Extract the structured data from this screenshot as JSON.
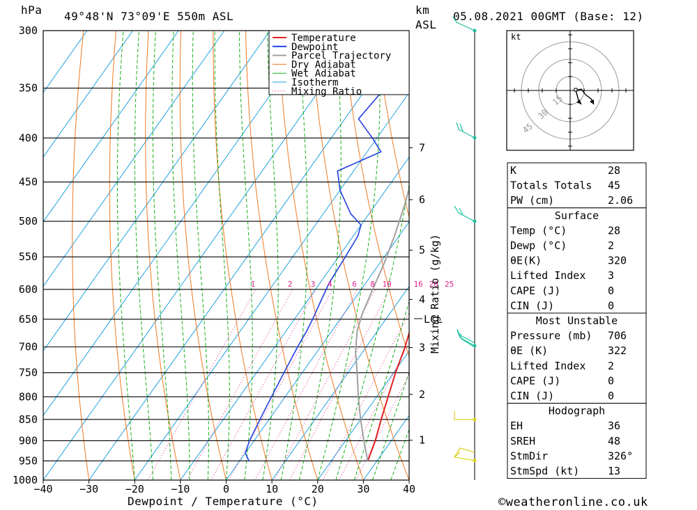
{
  "header": {
    "unit_p": "hPa",
    "location": "49°48'N 73°09'E 550m ASL",
    "unit_km": "km",
    "unit_asl": "ASL",
    "datetime": "05.08.2021 00GMT (Base: 12)"
  },
  "footer": {
    "credit": "©weatheronline.co.uk"
  },
  "colors": {
    "temperature": "#e02020",
    "dewpoint": "#2040e0",
    "parcel": "#a0a0a0",
    "dry_adiabat": "#f07820",
    "wet_adiabat": "#18b018",
    "isotherm": "#20a0e0",
    "mixing_ratio": "#e0208a",
    "wind": "#20c0a0"
  },
  "chart_data": {
    "type": "line",
    "title": "",
    "xlabel": "Dewpoint / Temperature (°C)",
    "ylabel": "hPa",
    "y2label": "Mixing Ratio (g/kg)",
    "xlim": [
      -40,
      40
    ],
    "ylim": [
      1000,
      300
    ],
    "yscale": "log",
    "x_ticks": [
      "−40",
      "−30",
      "−20",
      "−10",
      "0",
      "10",
      "20",
      "30",
      "40"
    ],
    "p_ticks": [
      "300",
      "350",
      "400",
      "450",
      "500",
      "550",
      "600",
      "650",
      "700",
      "750",
      "800",
      "850",
      "900",
      "950",
      "1000"
    ],
    "height_km_ticks": [
      "1",
      "2",
      "3",
      "4",
      "5",
      "6",
      "7"
    ],
    "lcl_label": "LCL",
    "mixing_ratio_labels": [
      "1",
      "2",
      "3",
      "4",
      "6",
      "8",
      "10",
      "16",
      "20",
      "25"
    ],
    "legend": [
      "Temperature",
      "Dewpoint",
      "Parcel Trajectory",
      "Dry Adiabat",
      "Wet Adiabat",
      "Isotherm",
      "Mixing Ratio"
    ],
    "series": [
      {
        "name": "Temperature",
        "points": [
          [
            28,
            950
          ],
          [
            26.5,
            900
          ],
          [
            24.5,
            850
          ],
          [
            22.5,
            800
          ],
          [
            20.4,
            750
          ],
          [
            18.5,
            700
          ],
          [
            16.5,
            660
          ],
          [
            15,
            620
          ],
          [
            13.5,
            580
          ],
          [
            12,
            540
          ],
          [
            10.5,
            510
          ],
          [
            9,
            480
          ],
          [
            7.5,
            450
          ],
          [
            6,
            425
          ],
          [
            5.5,
            400
          ],
          [
            3,
            370
          ],
          [
            0.5,
            340
          ],
          [
            -2,
            320
          ],
          [
            -4,
            300
          ]
        ]
      },
      {
        "name": "Dewpoint",
        "points": [
          [
            2,
            950
          ],
          [
            0,
            930
          ],
          [
            -1,
            900
          ],
          [
            -2,
            850
          ],
          [
            -3,
            800
          ],
          [
            -4,
            750
          ],
          [
            -5,
            700
          ],
          [
            -5.5,
            670
          ],
          [
            -6,
            650
          ],
          [
            -7,
            620
          ],
          [
            -8,
            590
          ],
          [
            -8.5,
            550
          ],
          [
            -9,
            520
          ],
          [
            -10,
            505
          ],
          [
            -14,
            490
          ],
          [
            -20,
            460
          ],
          [
            -23.5,
            437
          ],
          [
            -17,
            415
          ],
          [
            -21,
            400
          ],
          [
            -27,
            380
          ],
          [
            -26,
            350
          ],
          [
            -25,
            320
          ],
          [
            -24,
            300
          ]
        ]
      },
      {
        "name": "Parcel Trajectory",
        "points": [
          [
            28,
            950
          ],
          [
            24,
            900
          ],
          [
            20,
            850
          ],
          [
            16,
            800
          ],
          [
            12,
            750
          ],
          [
            8.5,
            710
          ],
          [
            7,
            690
          ],
          [
            5.5,
            670
          ],
          [
            4,
            640
          ],
          [
            2.5,
            600
          ],
          [
            1,
            560
          ],
          [
            -1,
            520
          ],
          [
            -3.5,
            480
          ],
          [
            -6.5,
            440
          ],
          [
            -10,
            400
          ],
          [
            -14,
            360
          ],
          [
            -18,
            330
          ],
          [
            -22,
            300
          ]
        ]
      }
    ]
  },
  "hodograph": {
    "unit": "kt",
    "rings": [
      "15",
      "30",
      "45"
    ]
  },
  "indices": {
    "top": [
      {
        "k": "K",
        "v": "28"
      },
      {
        "k": "Totals Totals",
        "v": "45"
      },
      {
        "k": "PW (cm)",
        "v": "2.06"
      }
    ],
    "surface": {
      "title": "Surface",
      "rows": [
        {
          "k": "Temp (°C)",
          "v": "28"
        },
        {
          "k": "Dewp (°C)",
          "v": "2"
        },
        {
          "k": "θE(K)",
          "v": "320"
        },
        {
          "k": "Lifted Index",
          "v": "3"
        },
        {
          "k": "CAPE (J)",
          "v": "0"
        },
        {
          "k": "CIN (J)",
          "v": "0"
        }
      ]
    },
    "most_unstable": {
      "title": "Most Unstable",
      "rows": [
        {
          "k": "Pressure (mb)",
          "v": "706"
        },
        {
          "k": "θE (K)",
          "v": "322"
        },
        {
          "k": "Lifted Index",
          "v": "2"
        },
        {
          "k": "CAPE (J)",
          "v": "0"
        },
        {
          "k": "CIN (J)",
          "v": "0"
        }
      ]
    },
    "hodograph": {
      "title": "Hodograph",
      "rows": [
        {
          "k": "EH",
          "v": "36"
        },
        {
          "k": "SREH",
          "v": "48"
        },
        {
          "k": "StmDir",
          "v": "326°"
        },
        {
          "k": "StmSpd (kt)",
          "v": "13"
        }
      ]
    }
  }
}
